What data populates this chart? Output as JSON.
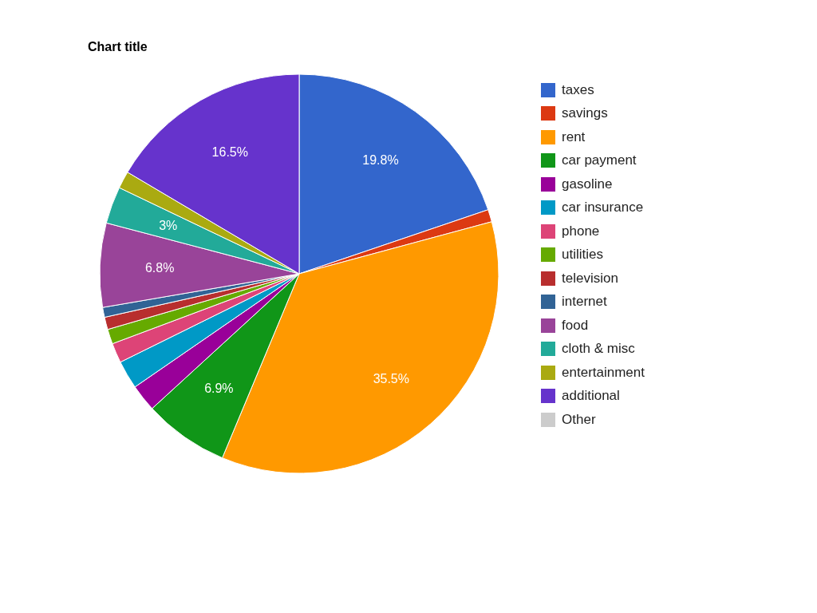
{
  "chart_data": {
    "type": "pie",
    "title": "Chart title",
    "categories": [
      "taxes",
      "savings",
      "rent",
      "car payment",
      "gasoline",
      "car insurance",
      "phone",
      "utilities",
      "television",
      "internet",
      "food",
      "cloth & misc",
      "entertainment",
      "additional",
      "Other"
    ],
    "values": [
      19.8,
      1.0,
      35.5,
      6.9,
      2.2,
      2.3,
      1.6,
      1.2,
      1.0,
      0.8,
      6.8,
      3,
      1.4,
      16.5,
      0
    ],
    "colors": [
      "#3366cc",
      "#dc3912",
      "#ff9900",
      "#109618",
      "#990099",
      "#0099c6",
      "#dd4477",
      "#66aa00",
      "#b82e2e",
      "#316395",
      "#994499",
      "#22aa99",
      "#aaaa11",
      "#6633cc",
      "#cccccc"
    ],
    "value_labels": [
      "19.8%",
      null,
      "35.5%",
      "6.9%",
      null,
      null,
      null,
      null,
      null,
      null,
      "6.8%",
      "3%",
      null,
      "16.5%",
      null
    ],
    "legend": "right"
  }
}
